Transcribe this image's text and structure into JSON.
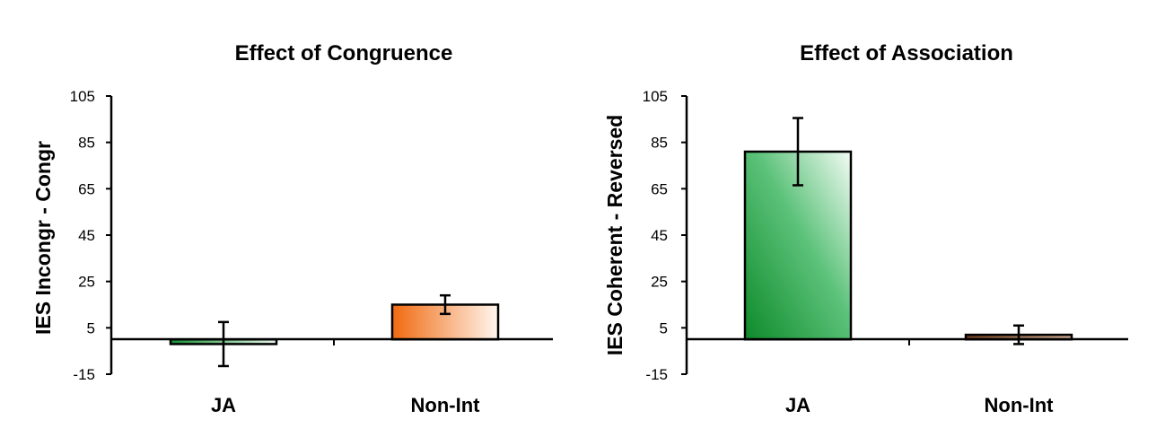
{
  "chart_data": [
    {
      "type": "bar",
      "title": "Effect of Congruence",
      "ylabel": "IES Incongr - Congr",
      "xlabel": "",
      "categories": [
        "JA",
        "Non-Int"
      ],
      "values": [
        -2,
        15
      ],
      "error": [
        9.5,
        4
      ],
      "ylim": [
        -15,
        105
      ],
      "yticks": [
        105,
        85,
        65,
        45,
        25,
        5,
        -15
      ],
      "colors": {
        "JA": "#1a9a3a",
        "Non-Int": "#f07a1a"
      },
      "grid": false
    },
    {
      "type": "bar",
      "title": "Effect of Association",
      "ylabel": "IES Coherent - Reversed",
      "xlabel": "",
      "categories": [
        "JA",
        "Non-Int"
      ],
      "values": [
        81,
        2
      ],
      "error": [
        14.5,
        4
      ],
      "ylim": [
        -15,
        105
      ],
      "yticks": [
        105,
        85,
        65,
        45,
        25,
        5,
        -15
      ],
      "colors": {
        "JA": "#1a9a3a",
        "Non-Int": "#6b3a1a"
      },
      "grid": false
    }
  ]
}
